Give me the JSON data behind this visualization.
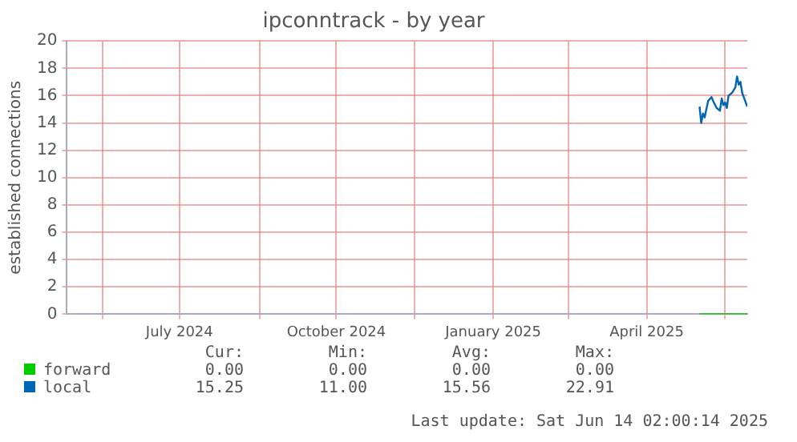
{
  "chart_data": {
    "type": "line",
    "title": "ipconntrack - by year",
    "ylabel": "established connections",
    "xlim": [
      "2024-05-11",
      "2025-06-14"
    ],
    "xticks": [
      {
        "value": "2024-06-01",
        "label": null
      },
      {
        "value": "2024-07-16",
        "label": "July 2024"
      },
      {
        "value": "2024-09-01",
        "label": null
      },
      {
        "value": "2024-10-16",
        "label": "October 2024"
      },
      {
        "value": "2024-12-01",
        "label": null
      },
      {
        "value": "2025-01-16",
        "label": "January 2025"
      },
      {
        "value": "2025-03-01",
        "label": null
      },
      {
        "value": "2025-04-16",
        "label": "April 2025"
      },
      {
        "value": "2025-06-01",
        "label": null
      }
    ],
    "ylim": [
      0,
      20
    ],
    "yticks": [
      0,
      2,
      4,
      6,
      8,
      10,
      12,
      14,
      16,
      18,
      20
    ],
    "grid": true,
    "legend": "bottom left",
    "marker": "none",
    "line_style": "solid",
    "series": [
      {
        "name": "forward",
        "color": "#00cc00",
        "x": [
          "2025-05-17",
          "2025-06-14"
        ],
        "values": [
          0,
          0
        ]
      },
      {
        "name": "local",
        "color": "#0066b3",
        "x": [
          "2025-05-17",
          "2025-05-18",
          "2025-05-19",
          "2025-05-20",
          "2025-05-22",
          "2025-05-24",
          "2025-05-25",
          "2025-05-27",
          "2025-05-29",
          "2025-05-30",
          "2025-05-31",
          "2025-06-01",
          "2025-06-02",
          "2025-06-03",
          "2025-06-05",
          "2025-06-07",
          "2025-06-08",
          "2025-06-09",
          "2025-06-10",
          "2025-06-11",
          "2025-06-14"
        ],
        "values": [
          15.2,
          14.0,
          14.7,
          14.4,
          15.6,
          15.9,
          15.6,
          15.1,
          14.9,
          15.8,
          15.3,
          15.5,
          15.1,
          16.0,
          16.2,
          16.6,
          17.4,
          16.8,
          17.0,
          16.2,
          15.2
        ]
      }
    ],
    "annotations": [
      "Cur:",
      "Min:",
      "Avg:",
      "Max:",
      "0.00",
      "0.00",
      "0.00",
      "0.00",
      "15.25",
      "11.00",
      "15.56",
      "22.91",
      "Last update: Sat Jun 14 02:00:14 2025"
    ]
  }
}
